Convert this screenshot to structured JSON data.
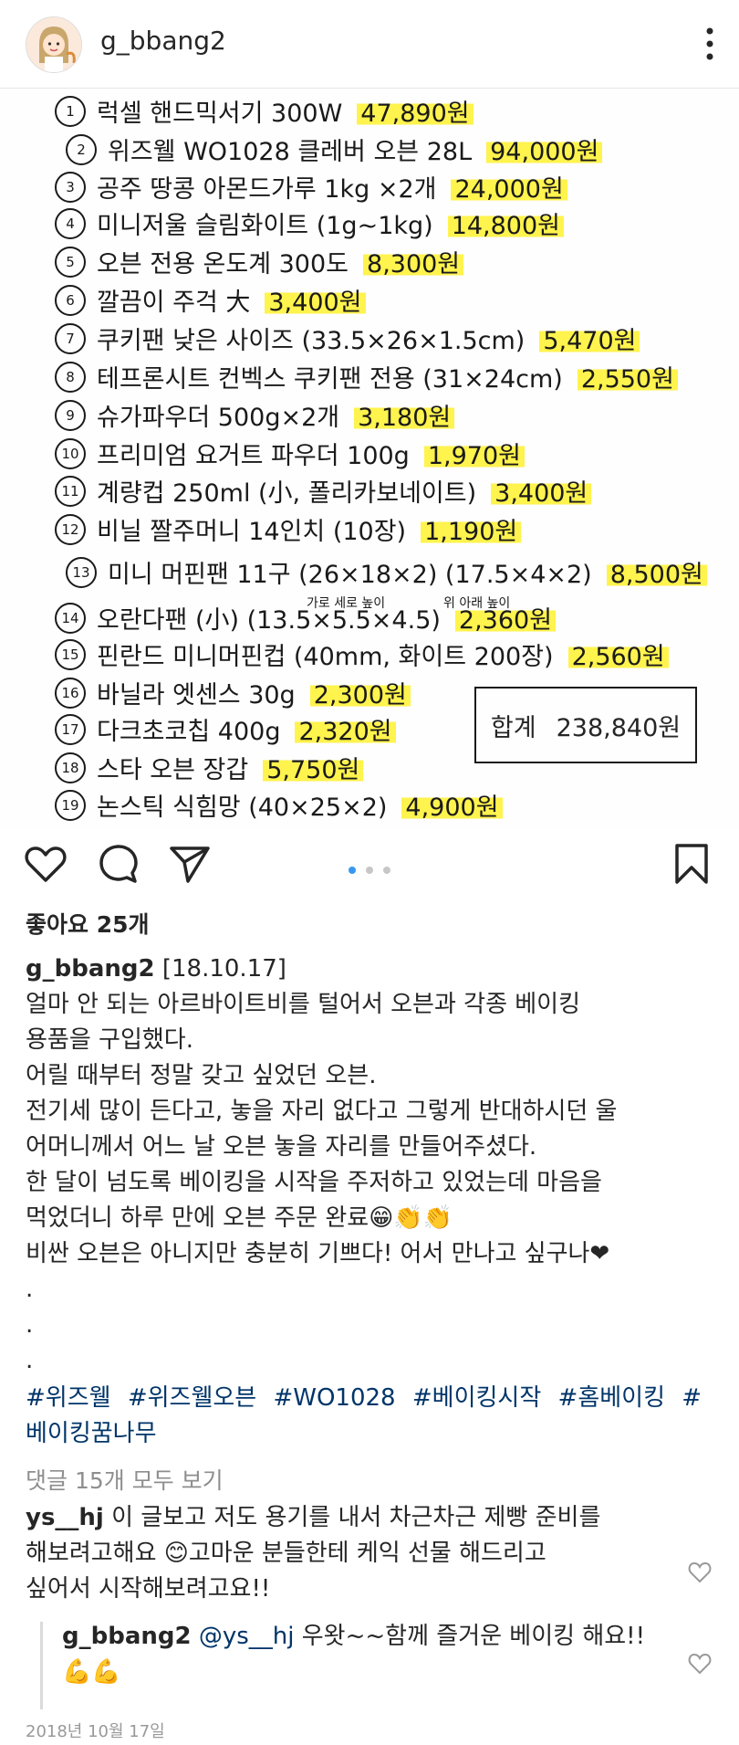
{
  "header": {
    "username": "g_bbang2"
  },
  "note": {
    "items": [
      {
        "num": "1",
        "text": "럭셀 핸드믹서기 300W",
        "price": "47,890원"
      },
      {
        "num": "2",
        "text": "위즈웰 WO1028 클레버 오븐 28L",
        "price": "94,000원"
      },
      {
        "num": "3",
        "text": "공주 땅콩 아몬드가루 1kg ×2개",
        "price": "24,000원"
      },
      {
        "num": "4",
        "text": "미니저울 슬림화이트 (1g~1kg)",
        "price": "14,800원"
      },
      {
        "num": "5",
        "text": "오븐 전용 온도계 300도",
        "price": "8,300원"
      },
      {
        "num": "6",
        "text": "깔끔이 주걱 大",
        "price": "3,400원"
      },
      {
        "num": "7",
        "text": "쿠키팬 낮은 사이즈 (33.5×26×1.5cm)",
        "price": "5,470원"
      },
      {
        "num": "8",
        "text": "테프론시트 컨벡스 쿠키팬 전용 (31×24cm)",
        "price": "2,550원"
      },
      {
        "num": "9",
        "text": "슈가파우더 500g×2개",
        "price": "3,180원"
      },
      {
        "num": "10",
        "text": "프리미엄 요거트 파우더 100g",
        "price": "1,970원"
      },
      {
        "num": "11",
        "text": "계량컵 250ml (小, 폴리카보네이트)",
        "price": "3,400원"
      },
      {
        "num": "12",
        "text": "비닐 짤주머니 14인치 (10장)",
        "price": "1,190원"
      },
      {
        "num": "13",
        "text": "미니 머핀팬 11구 (26×18×2) (17.5×4×2)",
        "price": "8,500원"
      },
      {
        "num": "14",
        "text": "오란다팬 (小) (13.5×5.5×4.5)",
        "price": "2,360원"
      },
      {
        "num": "15",
        "text": "핀란드 미니머핀컵 (40mm, 화이트 200장)",
        "price": "2,560원"
      },
      {
        "num": "16",
        "text": "바닐라 엣센스 30g",
        "price": "2,300원"
      },
      {
        "num": "17",
        "text": "다크초코칩 400g",
        "price": "2,320원"
      },
      {
        "num": "18",
        "text": "스타 오븐 장갑",
        "price": "5,750원"
      },
      {
        "num": "19",
        "text": "논스틱 식힘망 (40×25×2)",
        "price": "4,900원"
      }
    ],
    "sub13_left": "가로 세로 높이",
    "sub13_right": "위 아래 높이",
    "total_label": "합계",
    "total_value": "238,840원"
  },
  "likes": "좋아요 25개",
  "caption": {
    "user": "g_bbang2",
    "date": "[18.10.17]",
    "lines": [
      "얼마 안 되는 아르바이트비를 털어서 오븐과 각종 베이킹",
      "용품을 구입했다.",
      "어릴 때부터 정말 갖고 싶었던 오븐.",
      "전기세 많이 든다고, 놓을 자리 없다고 그렇게 반대하시던 울",
      "어머니께서 어느 날 오븐 놓을 자리를 만들어주셨다.",
      "한 달이 넘도록 베이킹을 시작을 주저하고 있었는데 마음을",
      "먹었더니 하루 만에 오븐 주문 완료😁👏👏",
      "비싼 오븐은 아니지만 충분히 기쁘다! 어서 만나고 싶구나❤",
      ".",
      ".",
      "."
    ]
  },
  "tags": [
    "#위즈웰",
    "#위즈웰오븐",
    "#WO1028",
    "#베이킹시작",
    "#홈베이킹",
    "#베이킹꿈나무"
  ],
  "view_all": "댓글 15개 모두 보기",
  "comment": {
    "user": "ys__hj",
    "text_lines": [
      "이 글보고 저도 용기를 내서 차근차근 제빵 준비를",
      "해보려고해요 😊고마운 분들한테 케익 선물 해드리고",
      "싶어서 시작해보려고요!!"
    ]
  },
  "reply": {
    "user": "g_bbang2",
    "mention": "@ys__hj",
    "text": "우왓~~함께 즐거운 베이킹 해요!!",
    "emoji": "💪💪"
  },
  "post_date": "2018년 10월 17일",
  "colors": {
    "highlight": "#fff34d",
    "hashtag": "#003569",
    "accent": "#3897f0"
  }
}
